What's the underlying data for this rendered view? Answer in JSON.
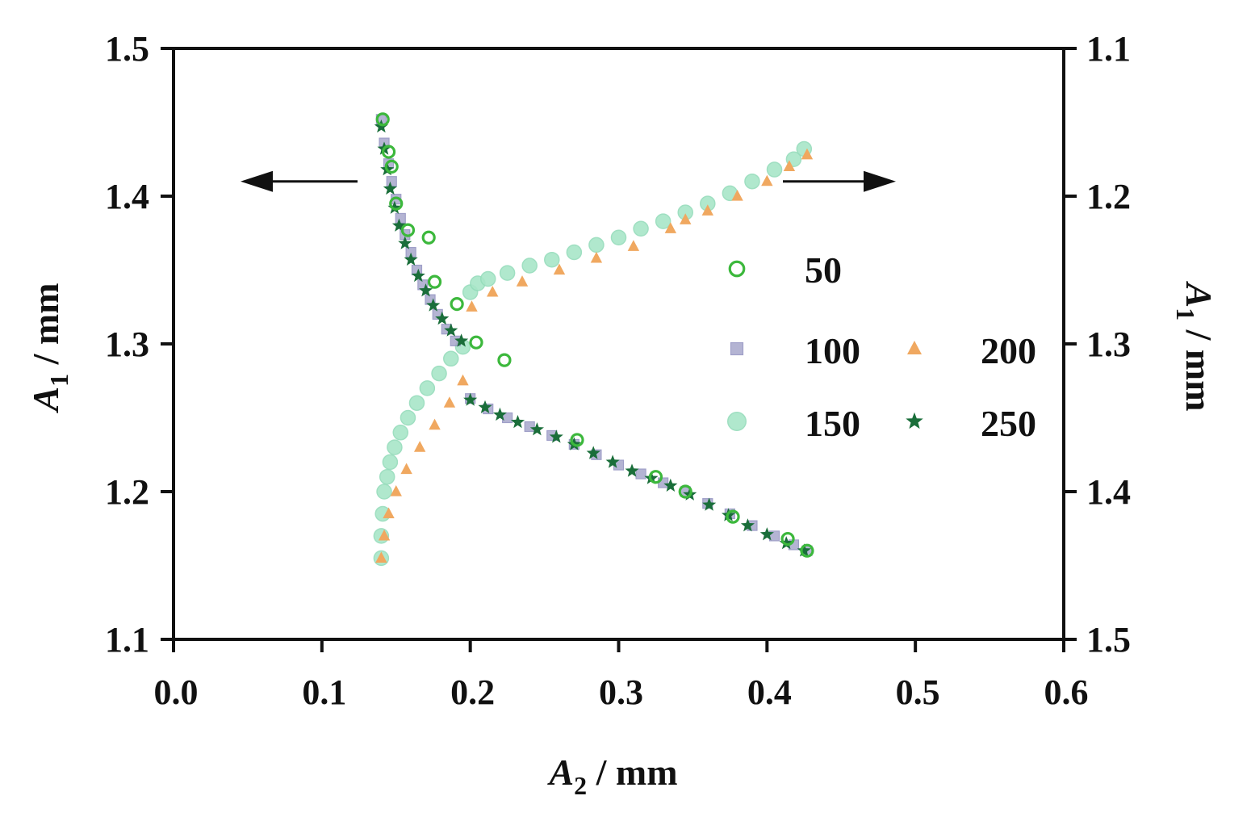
{
  "chart_data": {
    "type": "scatter",
    "x_axis": {
      "label_main": "A",
      "label_sub": "2",
      "label_unit": " / mm",
      "range": [
        0.0,
        0.6
      ],
      "ticks": [
        0.0,
        0.1,
        0.2,
        0.3,
        0.4,
        0.5,
        0.6
      ],
      "tick_labels": [
        "0.0",
        "0.1",
        "0.2",
        "0.3",
        "0.4",
        "0.5",
        "0.6"
      ]
    },
    "y_left": {
      "label_main": "A",
      "label_sub": "1",
      "label_unit": " / mm",
      "range": [
        1.1,
        1.5
      ],
      "ticks": [
        1.1,
        1.2,
        1.3,
        1.4,
        1.5
      ],
      "tick_labels": [
        "1.1",
        "1.2",
        "1.3",
        "1.4",
        "1.5"
      ]
    },
    "y_right": {
      "label_main": "A",
      "label_sub": "1",
      "label_unit": " / mm",
      "range": [
        1.5,
        1.1
      ],
      "inverted": true,
      "ticks": [
        1.1,
        1.2,
        1.3,
        1.4,
        1.5
      ],
      "tick_labels": [
        "1.1",
        "1.2",
        "1.3",
        "1.4",
        "1.5"
      ]
    },
    "grid": false,
    "legend_position": "center-right",
    "legend": [
      {
        "label": "50",
        "marker": "ring",
        "color": "#3cb83c"
      },
      {
        "label": "100",
        "marker": "square",
        "color": "#a8a8cc"
      },
      {
        "label": "200",
        "marker": "triangle",
        "color": "#f0a860"
      },
      {
        "label": "150",
        "marker": "circle",
        "color": "#a8e6c8"
      },
      {
        "label": "250",
        "marker": "star",
        "color": "#1a6e3a"
      }
    ],
    "arrows": [
      {
        "points_to": "left-axis",
        "at": [
          0.125,
          1.41
        ]
      },
      {
        "points_to": "right-axis",
        "at": [
          0.475,
          1.41
        ]
      }
    ],
    "series": [
      {
        "name": "50",
        "axis": "left",
        "points": [
          [
            0.141,
            1.452
          ],
          [
            0.145,
            1.43
          ],
          [
            0.147,
            1.42
          ],
          [
            0.15,
            1.395
          ],
          [
            0.158,
            1.377
          ],
          [
            0.172,
            1.372
          ],
          [
            0.176,
            1.342
          ],
          [
            0.191,
            1.327
          ],
          [
            0.204,
            1.301
          ],
          [
            0.223,
            1.289
          ],
          [
            0.272,
            1.235
          ],
          [
            0.325,
            1.21
          ],
          [
            0.345,
            1.2
          ],
          [
            0.377,
            1.183
          ],
          [
            0.414,
            1.168
          ],
          [
            0.427,
            1.16
          ]
        ]
      },
      {
        "name": "100",
        "axis": "left",
        "points": [
          [
            0.14,
            1.452
          ],
          [
            0.142,
            1.436
          ],
          [
            0.145,
            1.422
          ],
          [
            0.147,
            1.41
          ],
          [
            0.15,
            1.398
          ],
          [
            0.153,
            1.385
          ],
          [
            0.156,
            1.374
          ],
          [
            0.16,
            1.362
          ],
          [
            0.164,
            1.35
          ],
          [
            0.168,
            1.34
          ],
          [
            0.173,
            1.33
          ],
          [
            0.178,
            1.32
          ],
          [
            0.184,
            1.31
          ],
          [
            0.19,
            1.302
          ],
          [
            0.2,
            1.263
          ],
          [
            0.212,
            1.256
          ],
          [
            0.225,
            1.25
          ],
          [
            0.24,
            1.244
          ],
          [
            0.255,
            1.238
          ],
          [
            0.27,
            1.232
          ],
          [
            0.285,
            1.225
          ],
          [
            0.3,
            1.218
          ],
          [
            0.315,
            1.212
          ],
          [
            0.33,
            1.206
          ],
          [
            0.345,
            1.2
          ],
          [
            0.36,
            1.192
          ],
          [
            0.375,
            1.185
          ],
          [
            0.39,
            1.177
          ],
          [
            0.405,
            1.17
          ],
          [
            0.418,
            1.164
          ],
          [
            0.427,
            1.16
          ]
        ]
      },
      {
        "name": "250",
        "axis": "left",
        "points": [
          [
            0.14,
            1.447
          ],
          [
            0.142,
            1.432
          ],
          [
            0.144,
            1.418
          ],
          [
            0.146,
            1.405
          ],
          [
            0.149,
            1.392
          ],
          [
            0.152,
            1.38
          ],
          [
            0.156,
            1.368
          ],
          [
            0.16,
            1.357
          ],
          [
            0.165,
            1.346
          ],
          [
            0.17,
            1.336
          ],
          [
            0.175,
            1.326
          ],
          [
            0.181,
            1.317
          ],
          [
            0.187,
            1.309
          ],
          [
            0.194,
            1.302
          ],
          [
            0.2,
            1.262
          ],
          [
            0.21,
            1.257
          ],
          [
            0.22,
            1.252
          ],
          [
            0.232,
            1.247
          ],
          [
            0.245,
            1.242
          ],
          [
            0.258,
            1.237
          ],
          [
            0.27,
            1.232
          ],
          [
            0.283,
            1.226
          ],
          [
            0.296,
            1.22
          ],
          [
            0.309,
            1.214
          ],
          [
            0.322,
            1.209
          ],
          [
            0.335,
            1.204
          ],
          [
            0.348,
            1.198
          ],
          [
            0.361,
            1.191
          ],
          [
            0.374,
            1.184
          ],
          [
            0.387,
            1.177
          ],
          [
            0.4,
            1.171
          ],
          [
            0.413,
            1.165
          ],
          [
            0.425,
            1.16
          ]
        ]
      },
      {
        "name": "150",
        "axis": "right",
        "points": [
          [
            0.14,
            1.445
          ],
          [
            0.14,
            1.43
          ],
          [
            0.141,
            1.415
          ],
          [
            0.142,
            1.4
          ],
          [
            0.144,
            1.39
          ],
          [
            0.146,
            1.38
          ],
          [
            0.149,
            1.37
          ],
          [
            0.153,
            1.36
          ],
          [
            0.158,
            1.35
          ],
          [
            0.164,
            1.34
          ],
          [
            0.171,
            1.33
          ],
          [
            0.179,
            1.32
          ],
          [
            0.187,
            1.31
          ],
          [
            0.195,
            1.302
          ],
          [
            0.2,
            1.265
          ],
          [
            0.205,
            1.259
          ],
          [
            0.212,
            1.256
          ],
          [
            0.225,
            1.252
          ],
          [
            0.24,
            1.247
          ],
          [
            0.255,
            1.243
          ],
          [
            0.27,
            1.238
          ],
          [
            0.285,
            1.233
          ],
          [
            0.3,
            1.228
          ],
          [
            0.315,
            1.222
          ],
          [
            0.33,
            1.217
          ],
          [
            0.345,
            1.211
          ],
          [
            0.36,
            1.205
          ],
          [
            0.375,
            1.198
          ],
          [
            0.39,
            1.19
          ],
          [
            0.405,
            1.182
          ],
          [
            0.418,
            1.175
          ],
          [
            0.425,
            1.168
          ]
        ]
      },
      {
        "name": "200",
        "axis": "right",
        "points": [
          [
            0.14,
            1.445
          ],
          [
            0.142,
            1.43
          ],
          [
            0.145,
            1.415
          ],
          [
            0.15,
            1.4
          ],
          [
            0.157,
            1.385
          ],
          [
            0.166,
            1.37
          ],
          [
            0.176,
            1.355
          ],
          [
            0.186,
            1.34
          ],
          [
            0.195,
            1.325
          ],
          [
            0.201,
            1.275
          ],
          [
            0.215,
            1.265
          ],
          [
            0.235,
            1.258
          ],
          [
            0.26,
            1.25
          ],
          [
            0.285,
            1.242
          ],
          [
            0.31,
            1.234
          ],
          [
            0.335,
            1.222
          ],
          [
            0.345,
            1.216
          ],
          [
            0.36,
            1.21
          ],
          [
            0.38,
            1.2
          ],
          [
            0.4,
            1.19
          ],
          [
            0.415,
            1.18
          ],
          [
            0.427,
            1.172
          ]
        ]
      }
    ]
  }
}
